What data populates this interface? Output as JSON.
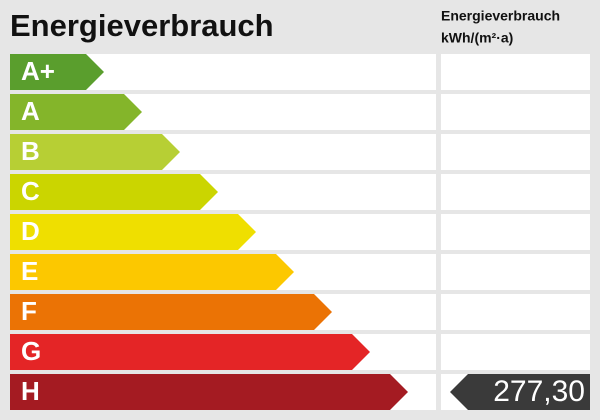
{
  "title": "Energieverbrauch",
  "value_header": [
    "Energieverbrauch",
    "kWh/(m²·a)"
  ],
  "classes": [
    {
      "label": "A+",
      "color": "#5a9e2d"
    },
    {
      "label": "A",
      "color": "#84b52a"
    },
    {
      "label": "B",
      "color": "#b7cf34"
    },
    {
      "label": "C",
      "color": "#cbd500"
    },
    {
      "label": "D",
      "color": "#efdf00"
    },
    {
      "label": "E",
      "color": "#fcc800"
    },
    {
      "label": "F",
      "color": "#eb7305"
    },
    {
      "label": "G",
      "color": "#e42526"
    },
    {
      "label": "H",
      "color": "#a41b22",
      "value": "277,30"
    }
  ]
}
